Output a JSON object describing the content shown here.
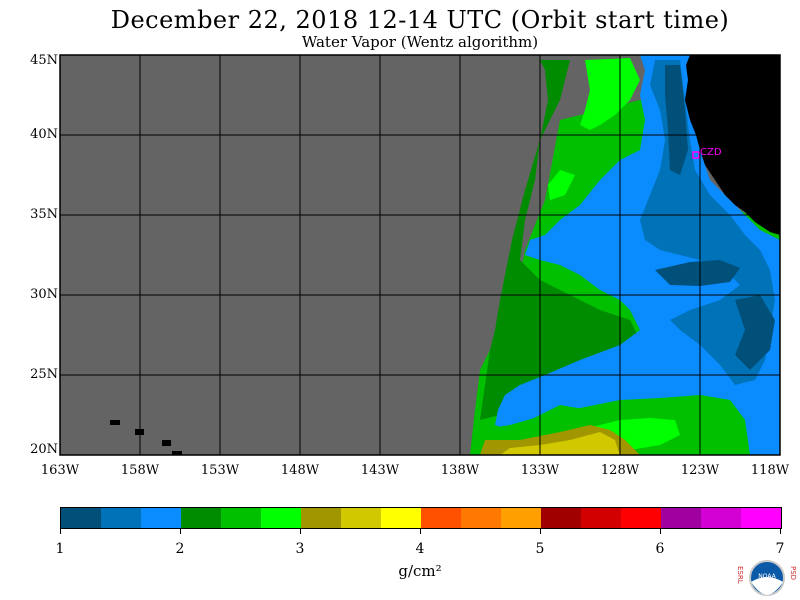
{
  "title": "December 22, 2018  12-14 UTC  (Orbit start time)",
  "subtitle": "Water Vapor (Wentz algorithm)",
  "map": {
    "lat_labels": [
      "45N",
      "40N",
      "35N",
      "30N",
      "25N",
      "20N"
    ],
    "lon_labels": [
      "163W",
      "158W",
      "153W",
      "148W",
      "143W",
      "138W",
      "133W",
      "128W",
      "123W",
      "118W"
    ],
    "station_label": "CZD",
    "colors": {
      "nodata": "#646464",
      "land": "#000000",
      "grid": "#000000",
      "station": "#ff00ff"
    }
  },
  "colorbar": {
    "colors": [
      "#00507a",
      "#0072b8",
      "#0a8cff",
      "#008c00",
      "#00c000",
      "#00ff00",
      "#a09600",
      "#d2c800",
      "#ffff00",
      "#ff5000",
      "#ff7800",
      "#ffa000",
      "#a00000",
      "#d20000",
      "#ff0000",
      "#a000a0",
      "#d200d2",
      "#ff00ff"
    ],
    "labels": [
      "1",
      "2",
      "3",
      "4",
      "5",
      "6",
      "7"
    ],
    "units": "g/cm²"
  },
  "logo": {
    "left_letters": "ESRL",
    "right_letters": "PSD",
    "center": "NOAA"
  }
}
